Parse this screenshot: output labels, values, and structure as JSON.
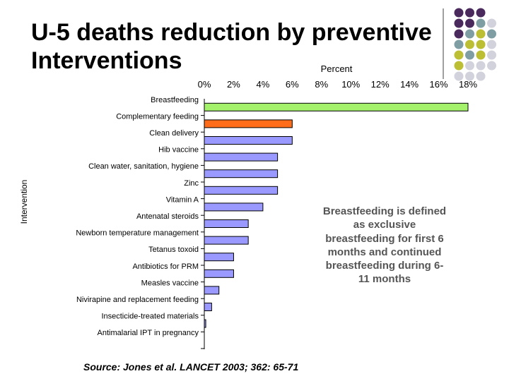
{
  "slide": {
    "title_line1": "U-5 deaths reduction by preventive",
    "title_line2": "Interventions",
    "note": "Breastfeeding is defined as exclusive breastfeeding for first 6 months and continued breastfeeding during 6-11 months",
    "source": "Source: Jones et al. LANCET 2003; 362: 65-71",
    "accent_colors": {
      "purple": "#4a2a5c",
      "teal": "#7f9ea3",
      "olive": "#bcbf34",
      "light": "#d2d2dc"
    }
  },
  "chart_data": {
    "type": "bar",
    "orientation": "horizontal",
    "title": "",
    "xlabel": "Percent",
    "ylabel": "Intervention",
    "xlim": [
      0,
      18
    ],
    "x_ticks": [
      "0%",
      "2%",
      "4%",
      "6%",
      "8%",
      "10%",
      "12%",
      "14%",
      "16%",
      "18%"
    ],
    "x_tick_values": [
      0,
      2,
      4,
      6,
      8,
      10,
      12,
      14,
      16,
      18
    ],
    "categories": [
      "Breastfeeding",
      "Complementary feeding",
      "Clean delivery",
      "Hib vaccine",
      "Clean water, sanitation, hygiene",
      "Zinc",
      "Vitamin A",
      "Antenatal steroids",
      "Newborn temperature management",
      "Tetanus toxoid",
      "Antibiotics for PRM",
      "Measles vaccine",
      "Nivirapine and replacement feeding",
      "Insecticide-treated materials",
      "Antimalarial IPT in pregnancy"
    ],
    "values": [
      18,
      6,
      6,
      5,
      5,
      5,
      4,
      3,
      3,
      2,
      2,
      1,
      0.5,
      0.1,
      0
    ],
    "colors": [
      "#a4f26c",
      "#ff6d1a",
      "#9999ff",
      "#9999ff",
      "#9999ff",
      "#9999ff",
      "#9999ff",
      "#9999ff",
      "#9999ff",
      "#9999ff",
      "#9999ff",
      "#9999ff",
      "#9999ff",
      "#9999ff",
      "#9999ff"
    ],
    "grid": false,
    "legend": "none"
  }
}
